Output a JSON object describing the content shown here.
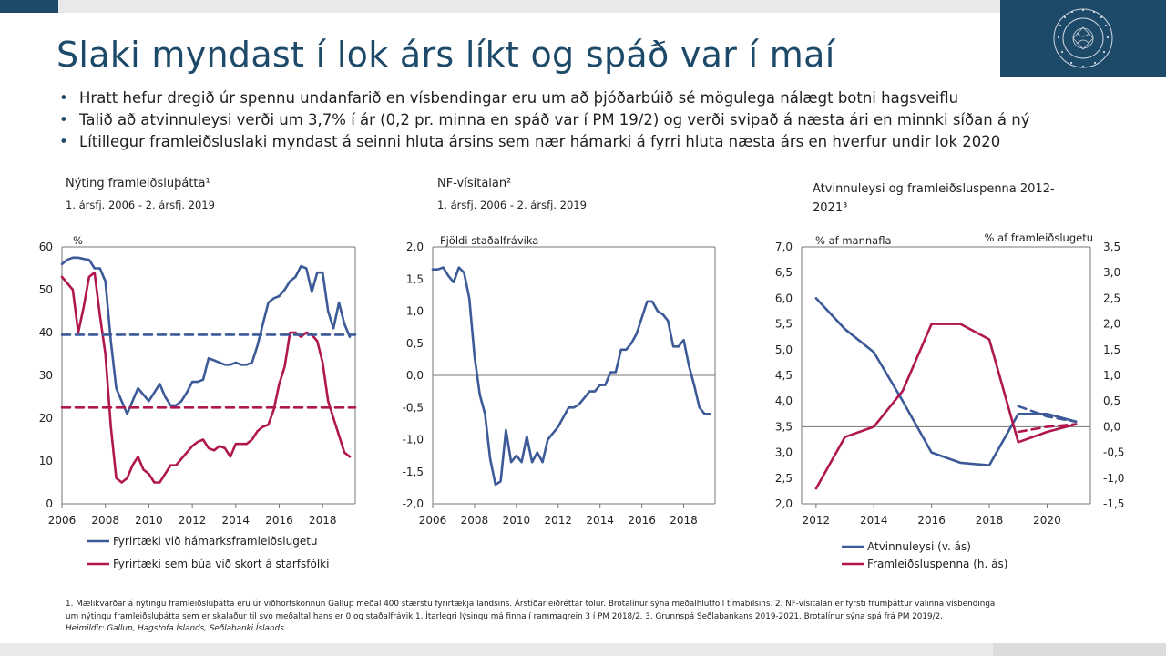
{
  "slide": {
    "title": "Slaki myndast í lok árs líkt og spáð var í maí",
    "bullets": [
      "Hratt hefur dregið úr spennu undanfarið en vísbendingar eru um að þjóðarbúið sé mögulega nálægt botni hagsveiflu",
      "Talið að atvinnuleysi verði um 3,7% í ár (0,2 pr. minna en spáð var í PM 19/2) og verði svipað á næsta ári en minnki síðan á ný",
      "Lítillegur framleiðsluslaki myndast á seinni hluta ársins sem nær hámarki á fyrri hluta næsta árs en hverfur undir lok 2020"
    ],
    "footnote": [
      "1. Mælikvarðar á nýtingu framleiðsluþátta eru úr viðhorfskönnun Gallup meðal 400 stærstu fyrirtækja landsins. Árstíðarleiðréttar tölur. Brotalínur sýna meðalhlutföll tímabilsins. 2. NF-vísitalan er fyrsti frumþáttur valinna vísbendinga",
      "um nýtingu framleiðsluþátta sem er skalaður til svo meðaltal hans er 0 og staðalfrávik 1. Ítarlegri lýsingu má finna í rammagrein 3 í PM 2018/2. 3. Grunnspá Seðlabankans 2019-2021. Brotalínur sýna spá frá PM 2019/2.",
      "Heimildir: Gallup, Hagstofa Íslands, Seðlabanki Íslands."
    ],
    "colors": {
      "brand": "#1e4a6a",
      "blue": "#3d5a98",
      "red": "#b0174f"
    }
  },
  "chart_data": [
    {
      "type": "line",
      "title": "Nýting framleiðsluþátta¹",
      "subtitle": "1. ársfj. 2006 - 2. ársfj. 2019",
      "ylabel": "%",
      "ylim": [
        0,
        60
      ],
      "yticks": [
        "0",
        "10",
        "20",
        "30",
        "40",
        "50",
        "60"
      ],
      "xlim": [
        2006,
        2019.5
      ],
      "xticks": [
        "2006",
        "2008",
        "2010",
        "2012",
        "2014",
        "2016",
        "2018"
      ],
      "series": [
        {
          "name": "Fyrirtæki við hámarksframleiðslugetu",
          "color": "#3d5a98",
          "x": [
            2006.0,
            2006.25,
            2006.5,
            2006.75,
            2007.0,
            2007.25,
            2007.5,
            2007.75,
            2008.0,
            2008.25,
            2008.5,
            2008.75,
            2009.0,
            2009.25,
            2009.5,
            2009.75,
            2010.0,
            2010.25,
            2010.5,
            2010.75,
            2011.0,
            2011.25,
            2011.5,
            2011.75,
            2012.0,
            2012.25,
            2012.5,
            2012.75,
            2013.0,
            2013.25,
            2013.5,
            2013.75,
            2014.0,
            2014.25,
            2014.5,
            2014.75,
            2015.0,
            2015.25,
            2015.5,
            2015.75,
            2016.0,
            2016.25,
            2016.5,
            2016.75,
            2017.0,
            2017.25,
            2017.5,
            2017.75,
            2018.0,
            2018.25,
            2018.5,
            2018.75,
            2019.0,
            2019.25
          ],
          "values": [
            56,
            57,
            57.5,
            57.5,
            57.2,
            57,
            55,
            55,
            52,
            38,
            27,
            24,
            21,
            24,
            27,
            25.5,
            24,
            26,
            28,
            25,
            23,
            23,
            24,
            26,
            28.5,
            28.5,
            29,
            34,
            33.5,
            33,
            32.5,
            32.5,
            33,
            32.5,
            32.5,
            33,
            37,
            42,
            47,
            48,
            48.5,
            50,
            52,
            53,
            55.5,
            55,
            49.5,
            54,
            54,
            45,
            41,
            47,
            42,
            39
          ]
        },
        {
          "name": "Fyrirtæki sem búa við skort á starfsfólki",
          "color": "#b0174f",
          "x": [
            2006.0,
            2006.25,
            2006.5,
            2006.75,
            2007.0,
            2007.25,
            2007.5,
            2007.75,
            2008.0,
            2008.25,
            2008.5,
            2008.75,
            2009.0,
            2009.25,
            2009.5,
            2009.75,
            2010.0,
            2010.25,
            2010.5,
            2010.75,
            2011.0,
            2011.25,
            2011.5,
            2011.75,
            2012.0,
            2012.25,
            2012.5,
            2012.75,
            2013.0,
            2013.25,
            2013.5,
            2013.75,
            2014.0,
            2014.25,
            2014.5,
            2014.75,
            2015.0,
            2015.25,
            2015.5,
            2015.75,
            2016.0,
            2016.25,
            2016.5,
            2016.75,
            2017.0,
            2017.25,
            2017.5,
            2017.75,
            2018.0,
            2018.25,
            2018.5,
            2018.75,
            2019.0,
            2019.25
          ],
          "values": [
            53,
            51.5,
            50,
            40,
            46,
            53,
            54,
            44,
            35,
            18,
            6,
            5,
            6,
            9,
            11,
            8,
            7,
            5,
            5,
            7,
            9,
            9,
            10.5,
            12,
            13.5,
            14.5,
            15,
            13,
            12.5,
            13.5,
            13,
            11,
            14,
            14,
            14,
            15,
            17,
            18,
            18.5,
            22,
            28,
            32,
            40,
            40,
            39,
            40,
            39.5,
            38,
            33,
            24,
            20,
            16,
            12,
            11
          ]
        },
        {
          "name": "Meðaltal (hámarksframleiðslugeta)",
          "color": "#3d5a98",
          "dashed": true,
          "x": [
            2006,
            2019.5
          ],
          "values": [
            39.5,
            39.5
          ]
        },
        {
          "name": "Meðaltal (skortur á starfsfólki)",
          "color": "#b0174f",
          "dashed": true,
          "x": [
            2006,
            2019.5
          ],
          "values": [
            22.5,
            22.5
          ]
        }
      ],
      "legend": [
        "Fyrirtæki við hámarksframleiðslugetu",
        "Fyrirtæki sem búa við skort á starfsfólki"
      ]
    },
    {
      "type": "line",
      "title": "NF-vísitalan²",
      "subtitle": "1. ársfj. 2006 - 2. ársfj. 2019",
      "ylabel": "Fjöldi staðalfrávika",
      "ylim": [
        -2.0,
        2.0
      ],
      "yticks": [
        "-2,0",
        "-1,5",
        "-1,0",
        "-0,5",
        "0,0",
        "0,5",
        "1,0",
        "1,5",
        "2,0"
      ],
      "xlim": [
        2006,
        2019.5
      ],
      "xticks": [
        "2006",
        "2008",
        "2010",
        "2012",
        "2014",
        "2016",
        "2018"
      ],
      "series": [
        {
          "name": "NF-vísitalan",
          "color": "#3d5a98",
          "x": [
            2006.0,
            2006.25,
            2006.5,
            2006.75,
            2007.0,
            2007.25,
            2007.5,
            2007.75,
            2008.0,
            2008.25,
            2008.5,
            2008.75,
            2009.0,
            2009.25,
            2009.5,
            2009.75,
            2010.0,
            2010.25,
            2010.5,
            2010.75,
            2011.0,
            2011.25,
            2011.5,
            2011.75,
            2012.0,
            2012.25,
            2012.5,
            2012.75,
            2013.0,
            2013.25,
            2013.5,
            2013.75,
            2014.0,
            2014.25,
            2014.5,
            2014.75,
            2015.0,
            2015.25,
            2015.5,
            2015.75,
            2016.0,
            2016.25,
            2016.5,
            2016.75,
            2017.0,
            2017.25,
            2017.5,
            2017.75,
            2018.0,
            2018.25,
            2018.5,
            2018.75,
            2019.0,
            2019.25
          ],
          "values": [
            1.65,
            1.65,
            1.68,
            1.55,
            1.45,
            1.68,
            1.6,
            1.2,
            0.3,
            -0.3,
            -0.6,
            -1.3,
            -1.7,
            -1.65,
            -0.85,
            -1.35,
            -1.25,
            -1.35,
            -0.95,
            -1.35,
            -1.2,
            -1.35,
            -1.0,
            -0.9,
            -0.8,
            -0.65,
            -0.5,
            -0.5,
            -0.45,
            -0.35,
            -0.25,
            -0.25,
            -0.15,
            -0.15,
            0.05,
            0.05,
            0.4,
            0.4,
            0.5,
            0.65,
            0.9,
            1.15,
            1.15,
            1.0,
            0.95,
            0.85,
            0.45,
            0.45,
            0.55,
            0.15,
            -0.15,
            -0.5,
            -0.6,
            -0.6
          ]
        }
      ]
    },
    {
      "type": "line",
      "title": "Atvinnuleysi og framleiðsluspenna 2012-2021³",
      "ylabel_left": "% af mannafla",
      "ylabel_right": "% af framleiðslugetu",
      "ylim_left": [
        2.0,
        7.0
      ],
      "ylim_right": [
        -1.5,
        3.5
      ],
      "yticks_left": [
        "2,0",
        "2,5",
        "3,0",
        "3,5",
        "4,0",
        "4,5",
        "5,0",
        "5,5",
        "6,0",
        "6,5",
        "7,0"
      ],
      "yticks_right": [
        "-1,5",
        "-1,0",
        "-0,5",
        "0,0",
        "0,5",
        "1,0",
        "1,5",
        "2,0",
        "2,5",
        "3,0",
        "3,5"
      ],
      "xlim": [
        2011.5,
        2021.5
      ],
      "xticks": [
        "2012",
        "2014",
        "2016",
        "2018",
        "2020"
      ],
      "series": [
        {
          "name": "Atvinnuleysi (v. ás)",
          "color": "#3d5a98",
          "axis": "left",
          "x": [
            2012,
            2013,
            2014,
            2015,
            2016,
            2017,
            2018,
            2019,
            2020,
            2021
          ],
          "values": [
            6.0,
            5.4,
            4.95,
            4.0,
            3.0,
            2.8,
            2.75,
            3.75,
            3.75,
            3.6
          ]
        },
        {
          "name": "Framleiðsluspenna (h. ás)",
          "color": "#b0174f",
          "axis": "right",
          "x": [
            2012,
            2013,
            2014,
            2015,
            2016,
            2017,
            2018,
            2019,
            2020,
            2021
          ],
          "values": [
            -1.2,
            -0.2,
            0.0,
            0.7,
            2.0,
            2.0,
            1.7,
            -0.3,
            -0.1,
            0.05
          ]
        },
        {
          "name": "Atvinnuleysi spá PM 2019/2",
          "color": "#3d5a98",
          "axis": "left",
          "dashed": true,
          "x": [
            2019,
            2020,
            2021
          ],
          "values": [
            3.9,
            3.7,
            3.6
          ]
        },
        {
          "name": "Framleiðsluspenna spá PM 2019/2",
          "color": "#b0174f",
          "axis": "right",
          "dashed": true,
          "x": [
            2019,
            2020,
            2021
          ],
          "values": [
            -0.1,
            0.0,
            0.05
          ]
        }
      ],
      "legend": [
        "Atvinnuleysi (v. ás)",
        "Framleiðsluspenna (h. ás)"
      ]
    }
  ]
}
